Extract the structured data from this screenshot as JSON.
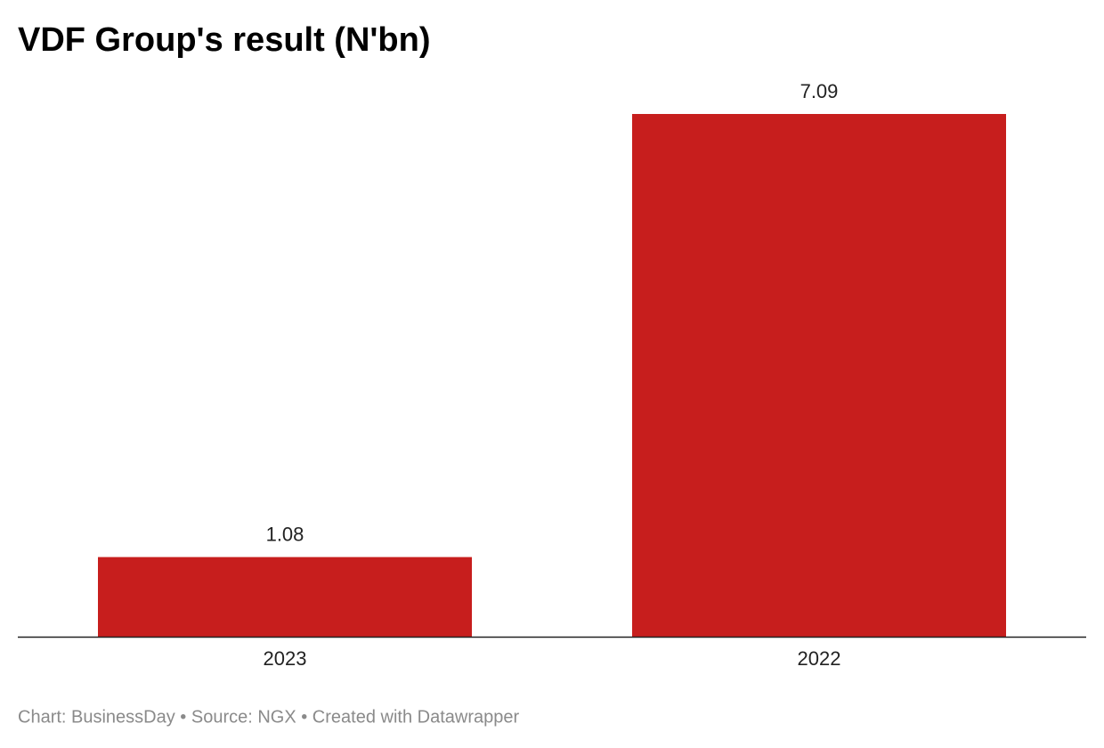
{
  "chart_data": {
    "type": "bar",
    "title": "VDF Group's result (N'bn)",
    "categories": [
      "2023",
      "2022"
    ],
    "values": [
      1.08,
      7.09
    ],
    "color": "#c71e1d",
    "footer": "Chart: BusinessDay • Source: NGX • Created with Datawrapper"
  }
}
